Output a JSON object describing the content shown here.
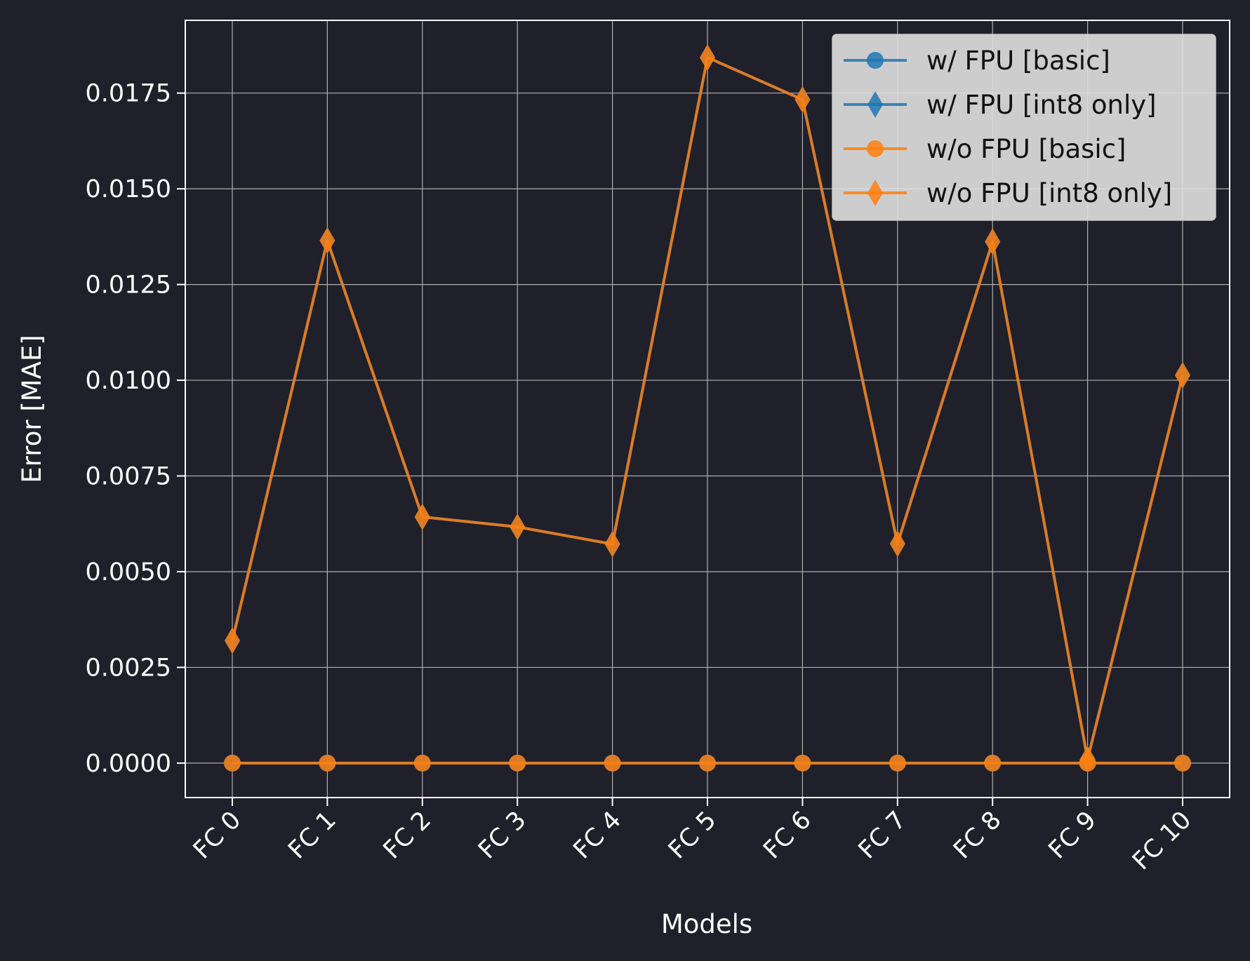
{
  "chart_data": {
    "type": "line",
    "title": "",
    "xlabel": "Models",
    "ylabel": "Error [MAE]",
    "categories": [
      "FC 0",
      "FC 1",
      "FC 2",
      "FC 3",
      "FC 4",
      "FC 5",
      "FC 6",
      "FC 7",
      "FC 8",
      "FC 9",
      "FC 10"
    ],
    "ylim": [
      -0.0009,
      0.0194
    ],
    "yticks": [
      0.0,
      0.0025,
      0.005,
      0.0075,
      0.01,
      0.0125,
      0.015,
      0.0175
    ],
    "ytick_labels": [
      "0.0000",
      "0.0025",
      "0.0050",
      "0.0075",
      "0.0100",
      "0.0125",
      "0.0150",
      "0.0175"
    ],
    "grid": true,
    "legend_position": "top-right",
    "series": [
      {
        "name": "w/ FPU [basic]",
        "color": "#1f77b4",
        "marker": "circle",
        "values": [
          0,
          0,
          0,
          0,
          0,
          0,
          0,
          0,
          0,
          0,
          0
        ]
      },
      {
        "name": "w/ FPU [int8 only]",
        "color": "#1f77b4",
        "marker": "diamond",
        "values": [
          0.0032,
          0.01365,
          0.00643,
          0.00617,
          0.00572,
          0.01843,
          0.01733,
          0.00573,
          0.01362,
          0.0001,
          0.01013
        ]
      },
      {
        "name": "w/o FPU [basic]",
        "color": "#ff7f0e",
        "marker": "circle",
        "values": [
          0,
          0,
          0,
          0,
          0,
          0,
          0,
          0,
          0,
          0,
          0
        ]
      },
      {
        "name": "w/o FPU [int8 only]",
        "color": "#ff7f0e",
        "marker": "diamond",
        "values": [
          0.0032,
          0.01365,
          0.00643,
          0.00617,
          0.00572,
          0.01843,
          0.01733,
          0.00573,
          0.01362,
          0.0001,
          0.01013
        ]
      }
    ]
  }
}
